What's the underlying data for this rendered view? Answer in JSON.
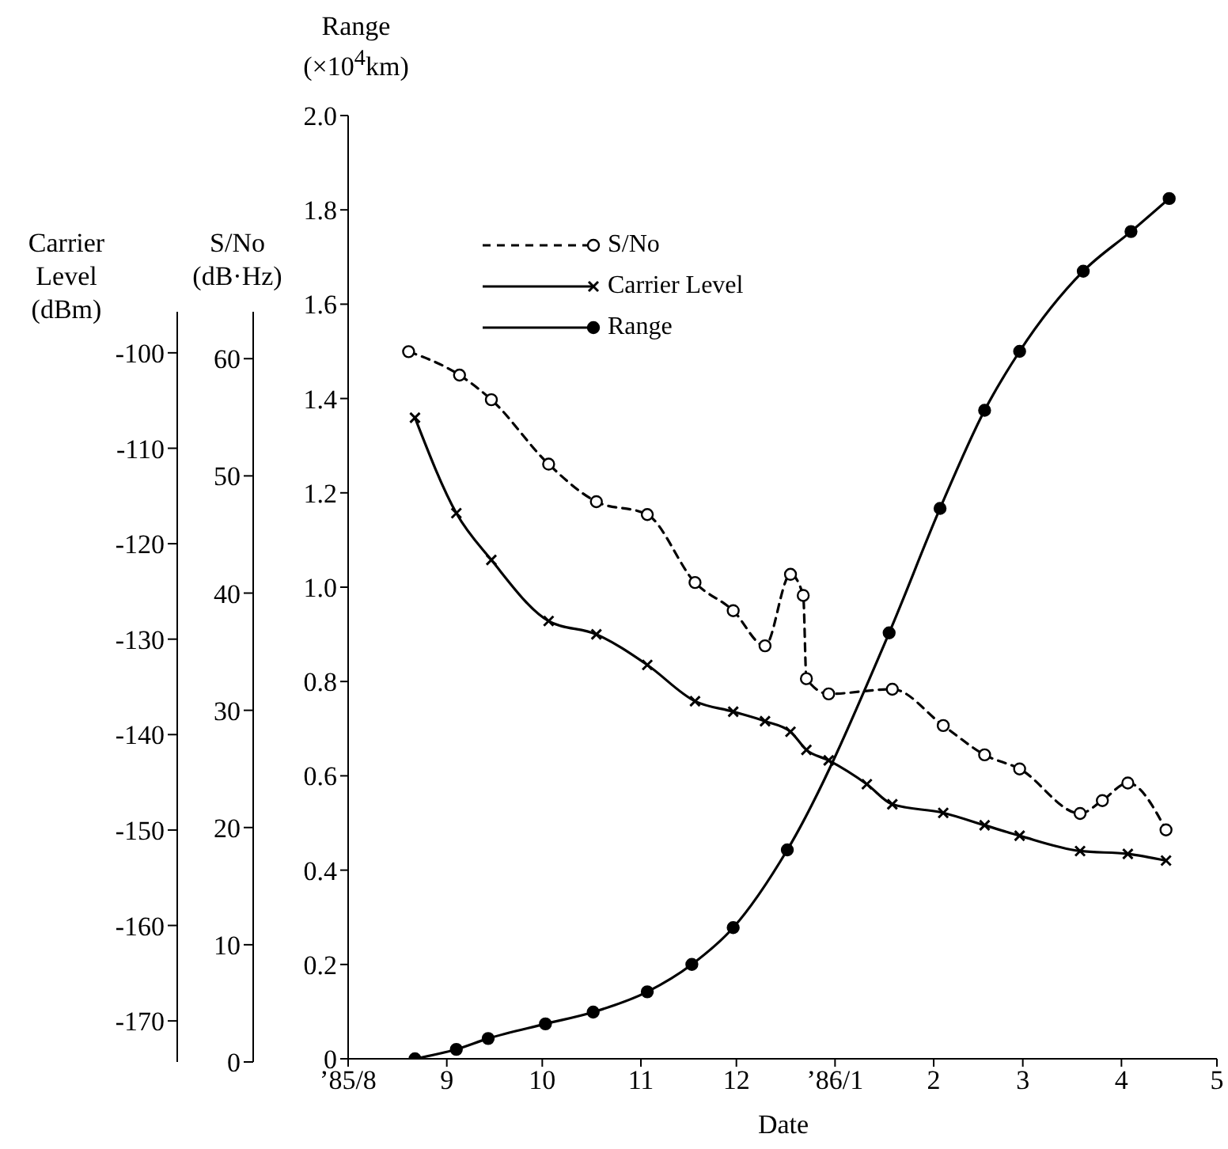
{
  "chart_data": {
    "type": "line",
    "xlabel": "Date",
    "ylabel": "Range\n(×10$^{4}$km)",
    "y2label": "S/No\n(dB·Hz)",
    "y3label": "Carrier\nLevel\n(dBm)",
    "xlim": [
      "1985-08",
      "1986-05"
    ],
    "xticks": [
      {
        "value": "1985-08",
        "label": "’85/8"
      },
      {
        "value": "1985-09",
        "label": "9"
      },
      {
        "value": "1985-10",
        "label": "10"
      },
      {
        "value": "1985-11",
        "label": "11"
      },
      {
        "value": "1985-12",
        "label": "12"
      },
      {
        "value": "1986-01",
        "label": "’86/1"
      },
      {
        "value": "1986-02",
        "label": "2"
      },
      {
        "value": "1986-03",
        "label": "3"
      },
      {
        "value": "1986-04",
        "label": "4"
      },
      {
        "value": "1986-05",
        "label": "5"
      }
    ],
    "ylim": [
      0,
      2
    ],
    "yticks": [
      0,
      0.2,
      0.4,
      0.6,
      0.8,
      {
        "value": 1,
        "label": "1.0"
      },
      1.2,
      1.4,
      1.6,
      1.8,
      {
        "value": 2,
        "label": "2.0"
      }
    ],
    "y2lim": [
      0,
      64
    ],
    "y2ticks": [
      0,
      10,
      20,
      30,
      40,
      50,
      60
    ],
    "y3lim": [
      -174.3,
      -95.7
    ],
    "y3ticks": [
      -170,
      -160,
      -150,
      -140,
      -130,
      -120,
      -110,
      -100
    ],
    "legend": "top left",
    "series": [
      {
        "type": "line",
        "name": "S/No",
        "color": "#000000",
        "axis": "y2",
        "marker": "circle",
        "line_style": "dashed",
        "x": [
          "1985-08-20",
          "1985-09-05",
          "1985-09-15",
          "1985-10-03",
          "1985-10-18",
          "1985-11-03",
          "1985-11-18",
          "1985-11-30",
          "1985-12-10",
          "1985-12-18",
          "1985-12-22",
          "1985-12-23",
          "1985-12-30",
          "1986-01-19",
          "1986-02-04",
          "1986-02-17",
          "1986-02-28",
          "1986-03-19",
          "1986-03-26",
          "1986-04-03",
          "1986-04-15"
        ],
        "values": [
          60.6,
          58.6,
          56.5,
          51.0,
          47.8,
          46.7,
          40.9,
          38.5,
          35.5,
          41.6,
          39.8,
          32.7,
          31.4,
          31.8,
          28.7,
          26.2,
          25.0,
          21.2,
          22.3,
          23.8,
          19.8
        ]
      },
      {
        "type": "line",
        "name": "Carrier Level",
        "color": "#000000",
        "axis": "y3",
        "marker": "cross",
        "line_style": "solid",
        "x": [
          "1985-08-22",
          "1985-09-04",
          "1985-09-15",
          "1985-10-03",
          "1985-10-18",
          "1985-11-03",
          "1985-11-18",
          "1985-11-30",
          "1985-12-10",
          "1985-12-18",
          "1985-12-23",
          "1985-12-30",
          "1986-01-11",
          "1986-01-19",
          "1986-02-04",
          "1986-02-17",
          "1986-02-28",
          "1986-03-19",
          "1986-04-03",
          "1986-04-15"
        ],
        "values": [
          -106.8,
          -116.8,
          -121.7,
          -128.1,
          -129.5,
          -132.7,
          -136.5,
          -137.6,
          -138.6,
          -139.7,
          -141.6,
          -142.7,
          -145.2,
          -147.3,
          -148.2,
          -149.5,
          -150.6,
          -152.2,
          -152.5,
          -153.2
        ]
      },
      {
        "type": "line",
        "name": "Range",
        "color": "#000000",
        "axis": "y",
        "marker": "circle",
        "line_style": "solid",
        "x": [
          "1985-08-22",
          "1985-09-04",
          "1985-09-14",
          "1985-10-02",
          "1985-10-17",
          "1985-11-03",
          "1985-11-17",
          "1985-11-30",
          "1985-12-17",
          "1986-01-18",
          "1986-02-03",
          "1986-02-17",
          "1986-02-28",
          "1986-03-20",
          "1986-04-04",
          "1986-04-16"
        ],
        "values": [
          0,
          0.02,
          0.043,
          0.074,
          0.099,
          0.142,
          0.2,
          0.278,
          0.443,
          0.903,
          1.167,
          1.375,
          1.5,
          1.67,
          1.754,
          1.824
        ]
      }
    ]
  }
}
